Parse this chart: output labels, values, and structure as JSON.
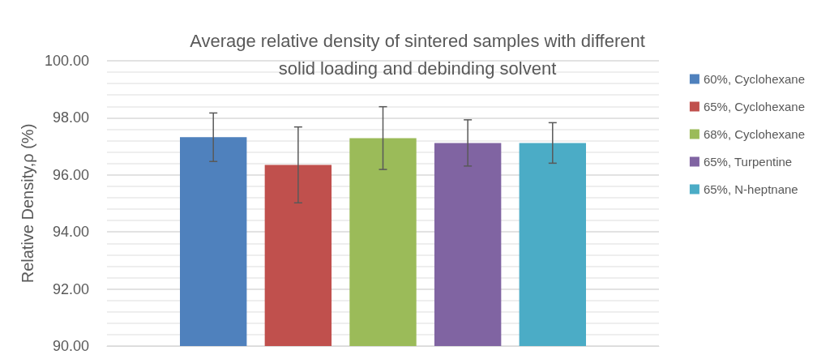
{
  "chart_data": {
    "type": "bar",
    "title": "Average relative density of sintered samples with different\nsolid loading and debinding solvent",
    "ylabel": "Relative Density,ρ (%)",
    "categories": [
      null
    ],
    "series": [
      {
        "name": "60%, Cyclohexane",
        "color": "#4f81bd",
        "values": [
          97.32
        ],
        "errors": [
          0.85
        ]
      },
      {
        "name": "65%, Cyclohexane",
        "color": "#c0504d",
        "values": [
          96.35
        ],
        "errors": [
          1.33
        ]
      },
      {
        "name": "68%, Cyclohexane",
        "color": "#9bbb59",
        "values": [
          97.29
        ],
        "errors": [
          1.1
        ]
      },
      {
        "name": "65%, Turpentine",
        "color": "#8064a2",
        "values": [
          97.12
        ],
        "errors": [
          0.81
        ]
      },
      {
        "name": "65%, N-heptnane",
        "color": "#4bacc6",
        "values": [
          97.12
        ],
        "errors": [
          0.71
        ]
      }
    ],
    "ylim": [
      90,
      100
    ],
    "yticks": [
      {
        "value": 90,
        "label": "90.00"
      },
      {
        "value": 92,
        "label": "92.00"
      },
      {
        "value": 94,
        "label": "94.00"
      },
      {
        "value": 96,
        "label": "96.00"
      },
      {
        "value": 98,
        "label": "98.00"
      },
      {
        "value": 100,
        "label": "100.00"
      }
    ],
    "grid": true,
    "legend": "right"
  }
}
